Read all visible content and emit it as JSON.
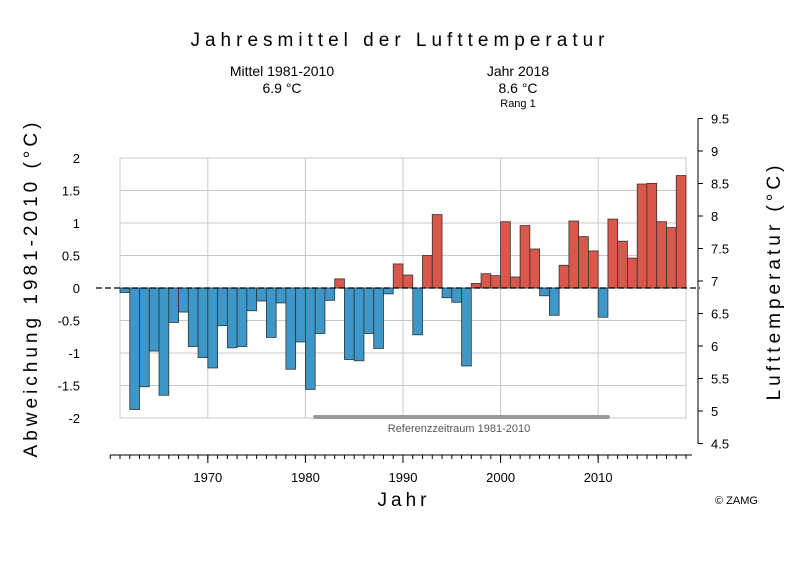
{
  "chart_data": {
    "type": "bar",
    "title": "Jahresmittel der Lufttemperatur",
    "header_left": {
      "line1": "Mittel 1981-2010",
      "line2": "6.9 °C"
    },
    "header_right": {
      "line1": "Jahr 2018",
      "line2": "8.6 °C",
      "line3": "Rang 1"
    },
    "ylabel_left": "Abweichung 1981-2010 (°C)",
    "ylabel_right": "Lufttemperatur (°C)",
    "xlabel": "Jahr",
    "ylim_left": [
      -2,
      2
    ],
    "ylim_right": [
      4.5,
      9.5
    ],
    "left_ticks": [
      "2",
      "1.5",
      "1",
      "0.5",
      "0",
      "-0.5",
      "-1",
      "-1.5",
      "-2"
    ],
    "left_tick_values": [
      2,
      1.5,
      1,
      0.5,
      0,
      -0.5,
      -1,
      -1.5,
      -2
    ],
    "right_ticks": [
      "9.5",
      "9",
      "8.5",
      "8",
      "7.5",
      "7",
      "6.5",
      "6",
      "5.5",
      "5",
      "4.5"
    ],
    "right_tick_values": [
      9.5,
      9,
      8.5,
      8,
      7.5,
      7,
      6.5,
      6,
      5.5,
      5,
      4.5
    ],
    "x_tick_labels": [
      "1970",
      "1980",
      "1990",
      "2000",
      "2010"
    ],
    "x_tick_values": [
      1970,
      1980,
      1990,
      2000,
      2010
    ],
    "reference_period": {
      "label": "Referenzzeitraum 1981-2010",
      "from": 1981,
      "to": 2010
    },
    "baseline_temperature": 6.9,
    "colors": {
      "negative": "#3d97c9",
      "positive": "#d9574b",
      "grid": "#c8c8c8",
      "reference_bar": "#999999"
    },
    "grid": true,
    "years": [
      1961,
      1962,
      1963,
      1964,
      1965,
      1966,
      1967,
      1968,
      1969,
      1970,
      1971,
      1972,
      1973,
      1974,
      1975,
      1976,
      1977,
      1978,
      1979,
      1980,
      1981,
      1982,
      1983,
      1984,
      1985,
      1986,
      1987,
      1988,
      1989,
      1990,
      1991,
      1992,
      1993,
      1994,
      1995,
      1996,
      1997,
      1998,
      1999,
      2000,
      2001,
      2002,
      2003,
      2004,
      2005,
      2006,
      2007,
      2008,
      2009,
      2010,
      2011,
      2012,
      2013,
      2014,
      2015,
      2016,
      2017,
      2018
    ],
    "values": [
      -0.07,
      -1.87,
      -1.52,
      -0.97,
      -1.65,
      -0.53,
      -0.37,
      -0.9,
      -1.07,
      -1.23,
      -0.58,
      -0.92,
      -0.9,
      -0.35,
      -0.2,
      -0.76,
      -0.23,
      -1.25,
      -0.83,
      -1.56,
      -0.7,
      -0.19,
      0.14,
      -1.1,
      -1.12,
      -0.7,
      -0.93,
      -0.09,
      0.37,
      0.2,
      -0.72,
      0.5,
      1.13,
      -0.15,
      -0.22,
      -1.2,
      0.07,
      0.22,
      0.19,
      1.02,
      0.17,
      0.96,
      0.6,
      -0.12,
      -0.42,
      0.35,
      1.03,
      0.79,
      0.57,
      -0.45,
      1.06,
      0.72,
      0.46,
      1.6,
      1.61,
      1.02,
      0.93,
      1.73
    ]
  },
  "copyright": "© ZAMG"
}
